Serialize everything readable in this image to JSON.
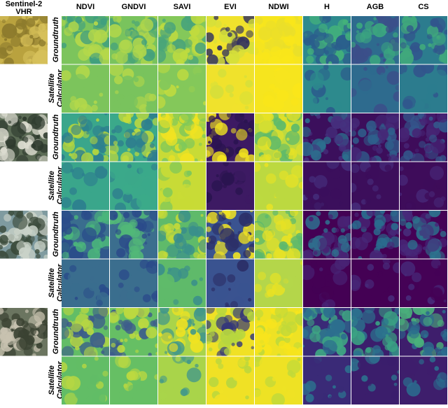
{
  "header": {
    "title_lines": [
      "Sentinel-2",
      "VHR"
    ],
    "columns": [
      "NDVI",
      "GNDVI",
      "SAVI",
      "EVI",
      "NDWI",
      "H",
      "AGB",
      "CS"
    ]
  },
  "rows": [
    {
      "label": [
        "Groundtruth"
      ]
    },
    {
      "label": [
        "Satellite",
        "Calculator"
      ]
    },
    {
      "label": [
        "Groundtruth"
      ]
    },
    {
      "label": [
        "Satellite",
        "Calculator"
      ]
    },
    {
      "label": [
        "Groundtruth"
      ]
    },
    {
      "label": [
        "Satellite",
        "Calculator"
      ]
    },
    {
      "label": [
        "Groundtruth"
      ]
    },
    {
      "label": [
        "Satellite",
        "Calculator"
      ]
    }
  ]
}
